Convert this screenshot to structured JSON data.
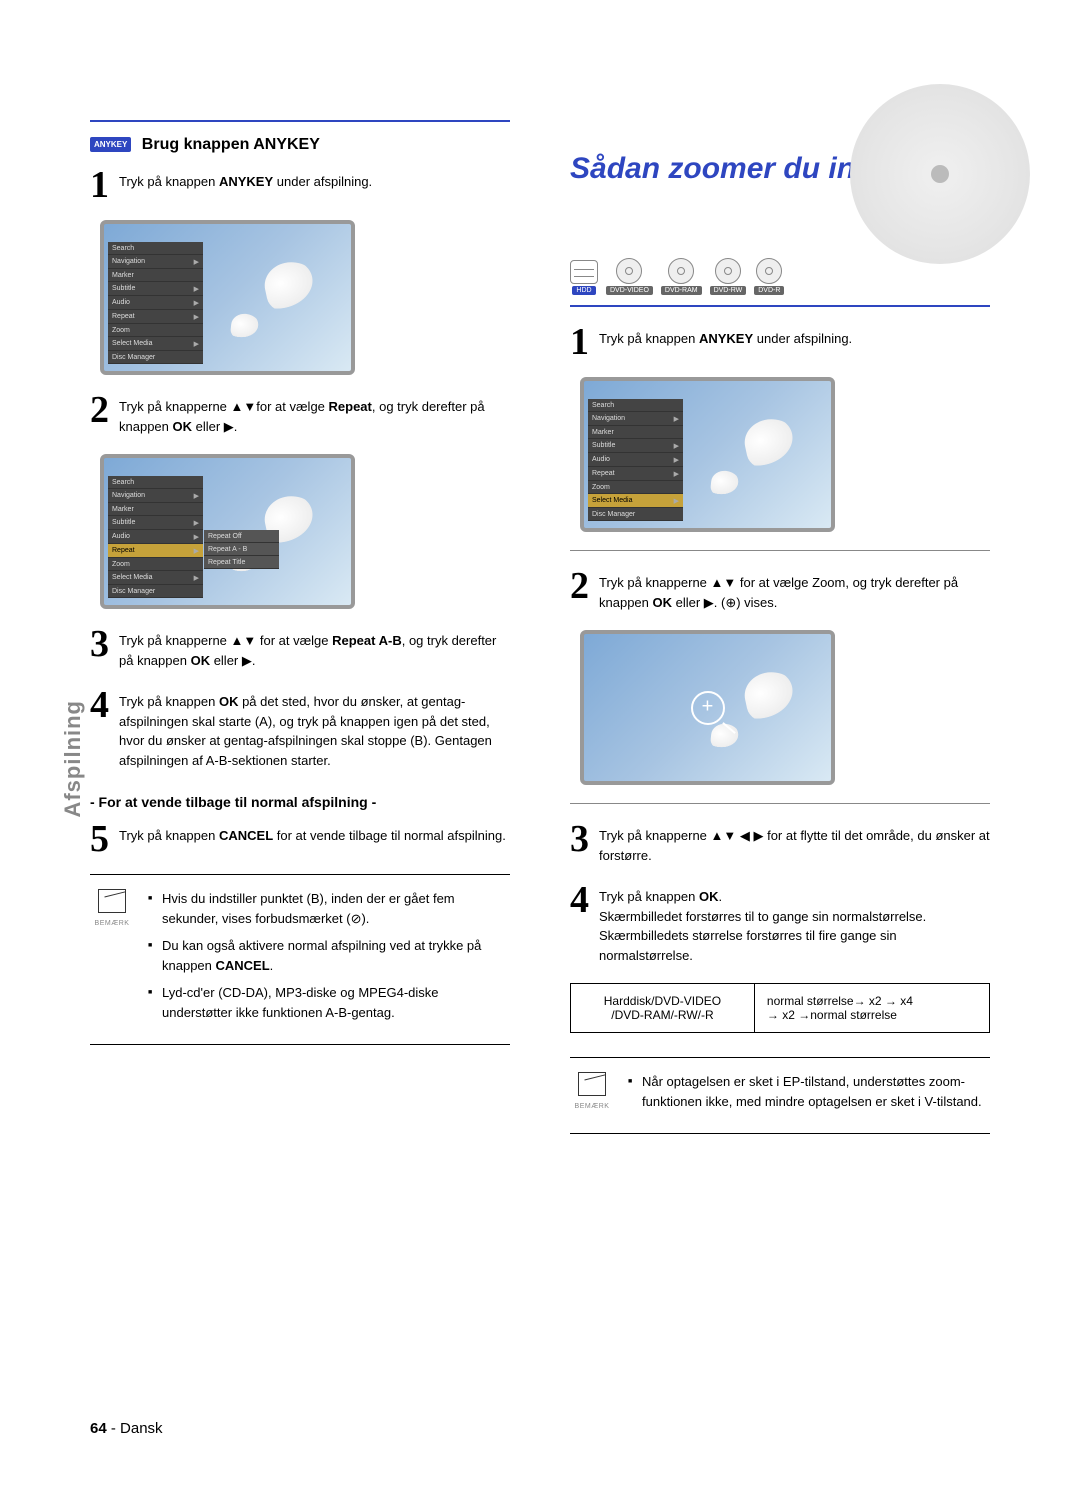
{
  "page": {
    "number": "64",
    "lang": "Dansk",
    "tab": "Afspilning"
  },
  "left": {
    "badge": "ANYKEY",
    "heading": "Brug knappen ANYKEY",
    "steps": [
      {
        "num": "1",
        "html": "Tryk på knappen <b>ANYKEY</b> under afspilning."
      },
      {
        "num": "2",
        "html": "Tryk på knapperne ▲▼for at vælge <b>Repeat</b>, og tryk derefter på knappen <b>OK</b> eller ▶."
      },
      {
        "num": "3",
        "html": "Tryk på knapperne ▲▼ for at vælge <b>Repeat A-B</b>, og tryk derefter på knappen <b>OK</b> eller ▶."
      },
      {
        "num": "4",
        "html": "Tryk på knappen <b>OK</b> på det sted, hvor du ønsker, at gentag-afspilningen skal starte (A), og tryk på knappen igen på det sted, hvor du ønsker at gentag-afspilningen skal stoppe (B). Gentagen afspilningen af A-B-sektionen starter."
      }
    ],
    "subheading": "- For at vende tilbage til normal afspilning -",
    "step5": {
      "num": "5",
      "html": "Tryk på knappen <b>CANCEL</b> for at vende tilbage til normal afspilning."
    },
    "note_label": "BEMÆRK",
    "notes": [
      "Hvis du indstiller punktet (B), inden der er gået fem sekunder, vises forbudsmærket (⊘).",
      "Du kan også aktivere normal afspilning ved at trykke på knappen <b>CANCEL</b>.",
      "Lyd-cd'er (CD-DA), MP3-diske og MPEG4-diske understøtter ikke funktionen A-B-gentag."
    ],
    "menu_items": [
      "Search",
      "Navigation",
      "Marker",
      "Subtitle",
      "Audio",
      "Repeat",
      "Zoom",
      "Select Media",
      "Disc Manager"
    ],
    "submenu_items": [
      "Repeat Off",
      "Repeat A - B",
      "Repeat Title"
    ]
  },
  "right": {
    "title": "Sådan zoomer du ind",
    "badges": [
      {
        "label": "HDD",
        "type": "hdd"
      },
      {
        "label": "DVD-VIDEO",
        "type": "disc"
      },
      {
        "label": "DVD-RAM",
        "type": "disc"
      },
      {
        "label": "DVD-RW",
        "type": "disc"
      },
      {
        "label": "DVD-R",
        "type": "disc"
      }
    ],
    "steps": [
      {
        "num": "1",
        "html": "Tryk på knappen <b>ANYKEY</b> under afspilning."
      },
      {
        "num": "2",
        "html": "Tryk på knapperne ▲▼ for at vælge Zoom, og tryk derefter på knappen <b>OK</b> eller ▶. (⊕) vises."
      },
      {
        "num": "3",
        "html": "Tryk på knapperne ▲▼ ◀ ▶ for at flytte til det område, du ønsker at forstørre."
      },
      {
        "num": "4",
        "html": "Tryk på knappen <b>OK</b>.<br>Skærmbilledet forstørres til to gange sin normalstørrelse. Skærmbilledets størrelse forstørres til fire gange sin normalstørrelse."
      }
    ],
    "table": {
      "c1a": "Harddisk/DVD-VIDEO",
      "c1b": "/DVD-RAM/-RW/-R",
      "c2a": "normal størrelse→ x2 → x4",
      "c2b": "→ x2 →normal størrelse"
    },
    "note_label": "BEMÆRK",
    "notes": [
      "Når optagelsen er sket i EP-tilstand, understøttes zoom-funktionen ikke, med mindre optagelsen er sket i V-tilstand."
    ],
    "menu_items": [
      "Search",
      "Navigation",
      "Marker",
      "Subtitle",
      "Audio",
      "Repeat",
      "Zoom",
      "Select Media",
      "Disc Manager"
    ]
  }
}
